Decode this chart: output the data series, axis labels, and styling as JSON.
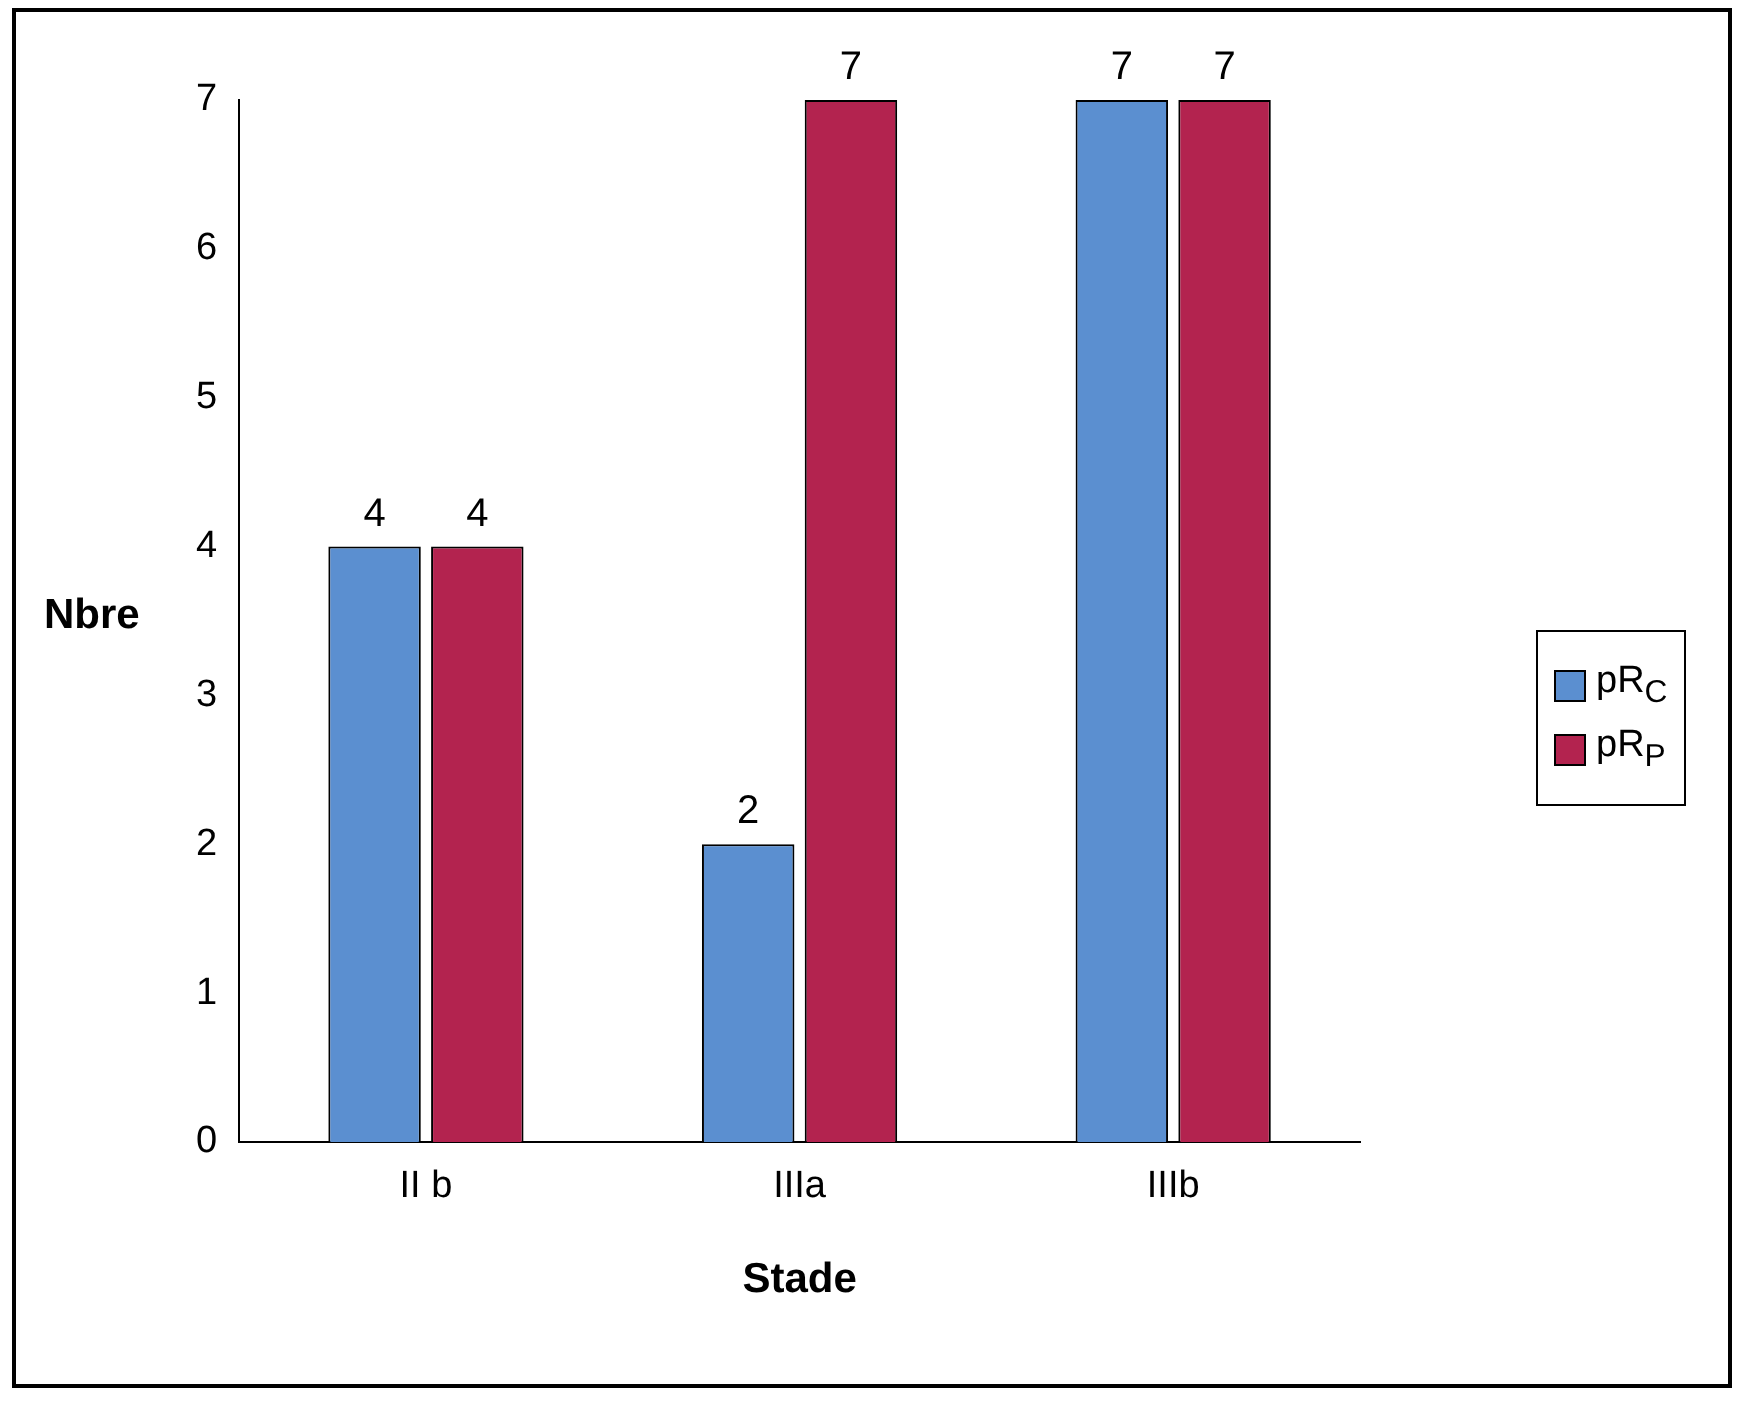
{
  "chart_data": {
    "type": "bar",
    "xlabel": "Stade",
    "ylabel": "Nbre",
    "categories": [
      "II b",
      "IIIa",
      "IIIb"
    ],
    "series": [
      {
        "name": "pR$_{C}$",
        "color": "#5b8fd0",
        "values": [
          4,
          2,
          7
        ]
      },
      {
        "name": "pR$_{P}$",
        "color": "#b3234f",
        "values": [
          4,
          7,
          7
        ]
      }
    ],
    "ylim": [
      0,
      7
    ],
    "yticks": [
      0,
      1,
      2,
      3,
      4,
      5,
      6,
      7
    ],
    "grid": false,
    "legend": "right",
    "data_labels": true
  }
}
